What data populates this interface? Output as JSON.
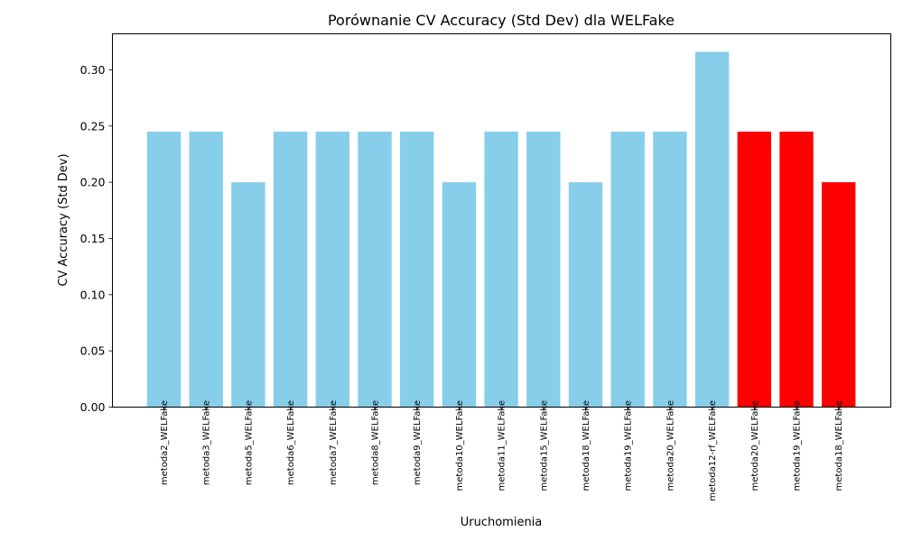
{
  "chart_data": {
    "type": "bar",
    "title": "Porównanie CV Accuracy (Std Dev) dla WELFake",
    "xlabel": "Uruchomienia",
    "ylabel": "CV Accuracy (Std Dev)",
    "categories": [
      "metoda2_WELFake",
      "metoda3_WELFake",
      "metoda5_WELFake",
      "metoda6_WELFake",
      "metoda7_WELFake",
      "metoda8_WELFake",
      "metoda9_WELFake",
      "metoda10_WELFake",
      "metoda11_WELFake",
      "metoda15_WELFake",
      "metoda18_WELFake",
      "metoda19_WELFake",
      "metoda20_WELFake",
      "metoda12-rf_WELFake",
      "metoda20_WELFake",
      "metoda19_WELFake",
      "metoda18_WELFake"
    ],
    "values": [
      0.245,
      0.245,
      0.2,
      0.245,
      0.245,
      0.245,
      0.245,
      0.2,
      0.245,
      0.245,
      0.2,
      0.245,
      0.245,
      0.316,
      0.245,
      0.245,
      0.2
    ],
    "bar_colors": [
      "#87CEEB",
      "#87CEEB",
      "#87CEEB",
      "#87CEEB",
      "#87CEEB",
      "#87CEEB",
      "#87CEEB",
      "#87CEEB",
      "#87CEEB",
      "#87CEEB",
      "#87CEEB",
      "#87CEEB",
      "#87CEEB",
      "#87CEEB",
      "#FF0000",
      "#FF0000",
      "#FF0000"
    ],
    "yticks": [
      "0.00",
      "0.05",
      "0.10",
      "0.15",
      "0.20",
      "0.25",
      "0.30"
    ],
    "ylim": [
      0,
      0.332
    ],
    "grid": false,
    "legend": false
  }
}
